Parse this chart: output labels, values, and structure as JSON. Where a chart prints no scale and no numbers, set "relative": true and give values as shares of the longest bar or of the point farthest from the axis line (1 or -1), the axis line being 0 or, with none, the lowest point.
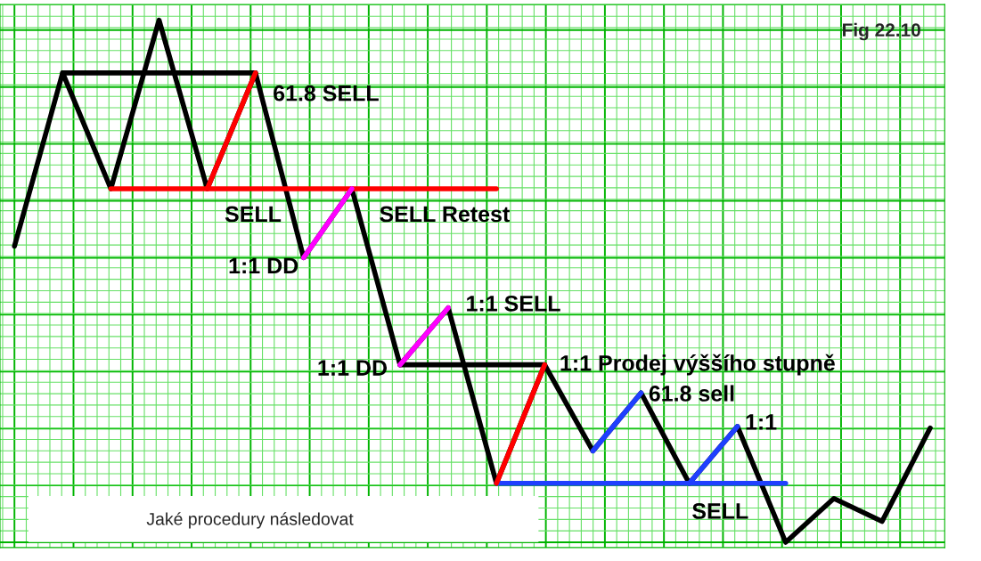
{
  "chart_data": {
    "type": "line",
    "relative": true,
    "tick_labels": false,
    "grid": true,
    "legend": false,
    "marker": "none",
    "line_style": "solid",
    "categories": [
      null,
      null,
      null,
      null,
      null,
      null,
      null,
      null,
      null,
      null,
      null,
      null,
      null,
      null,
      null,
      null,
      null,
      null,
      null,
      null
    ],
    "series": [
      {
        "color": "#000000",
        "values": [
          0.567,
          0.899,
          0.677,
          1.0,
          0.677,
          0.899,
          0.545,
          0.677,
          0.34,
          0.449,
          0.113,
          0.34,
          0.175,
          0.286,
          0.113,
          0.222,
          0,
          0.084,
          0.04,
          0.219
        ]
      },
      {
        "color": "#000000",
        "values": [
          null,
          0.899,
          0.899,
          0.899,
          0.899,
          0.899,
          null,
          null,
          null,
          null,
          null,
          null,
          null,
          null,
          null,
          null,
          null,
          null,
          null,
          null
        ]
      },
      {
        "color": "#ff0000",
        "values": [
          null,
          null,
          0.677,
          0.677,
          0.677,
          0.677,
          0.677,
          0.677,
          0.677,
          0.677,
          0.677,
          null,
          null,
          null,
          null,
          null,
          null,
          null,
          null,
          null
        ]
      },
      {
        "color": "#000000",
        "values": [
          null,
          null,
          null,
          null,
          null,
          null,
          null,
          null,
          0.34,
          0.34,
          0.34,
          0.34,
          null,
          null,
          null,
          null,
          null,
          null,
          null,
          null
        ]
      },
      {
        "color": "#1f3fff",
        "values": [
          null,
          null,
          null,
          null,
          null,
          null,
          null,
          null,
          null,
          null,
          0.113,
          0.113,
          0.113,
          0.113,
          0.113,
          0.113,
          0.113,
          null,
          null,
          null
        ]
      },
      {
        "color": "#ff0000",
        "values": [
          null,
          null,
          null,
          null,
          0.677,
          0.899,
          null,
          null,
          null,
          null,
          null,
          null,
          null,
          null,
          null,
          null,
          null,
          null,
          null,
          null
        ]
      },
      {
        "color": "#ff00ff",
        "values": [
          null,
          null,
          null,
          null,
          null,
          null,
          0.545,
          0.677,
          null,
          null,
          null,
          null,
          null,
          null,
          null,
          null,
          null,
          null,
          null,
          null
        ]
      },
      {
        "color": "#ff00ff",
        "values": [
          null,
          null,
          null,
          null,
          null,
          null,
          null,
          null,
          0.34,
          0.449,
          null,
          null,
          null,
          null,
          null,
          null,
          null,
          null,
          null,
          null
        ]
      },
      {
        "color": "#ff0000",
        "values": [
          null,
          null,
          null,
          null,
          null,
          null,
          null,
          null,
          null,
          null,
          0.113,
          0.34,
          null,
          null,
          null,
          null,
          null,
          null,
          null,
          null
        ]
      },
      {
        "color": "#1f3fff",
        "values": [
          null,
          null,
          null,
          null,
          null,
          null,
          null,
          null,
          null,
          null,
          null,
          null,
          0.175,
          0.286,
          null,
          null,
          null,
          null,
          null,
          null
        ]
      },
      {
        "color": "#1f3fff",
        "values": [
          null,
          null,
          null,
          null,
          null,
          null,
          null,
          null,
          null,
          null,
          null,
          null,
          null,
          null,
          0.113,
          0.222,
          null,
          null,
          null,
          null
        ]
      }
    ],
    "annotations": [
      "Fig 22.10",
      "Jaké procedury následovat",
      "61.8 SELL",
      "SELL",
      "SELL Retest",
      "1:1 DD",
      "1:1 SELL",
      "1:1 DD",
      "1:1 Prodej výššího stupně",
      "61.8 sell",
      "1:1",
      "SELL"
    ]
  }
}
